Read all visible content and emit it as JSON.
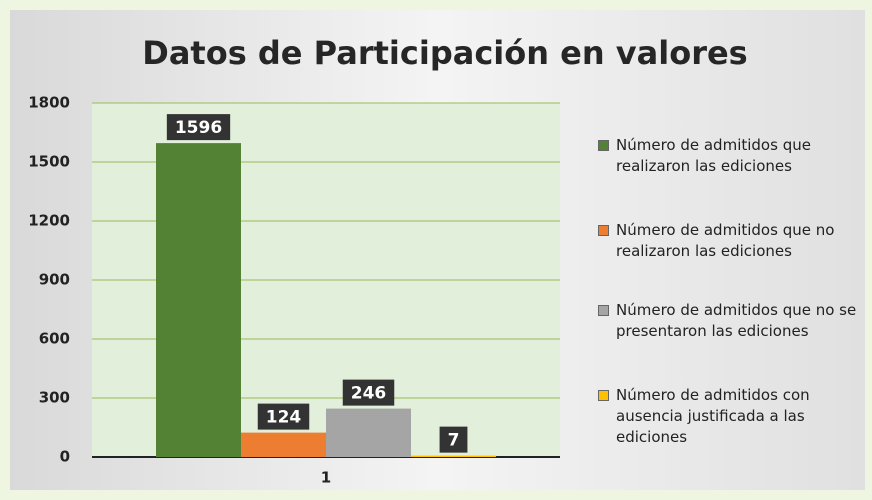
{
  "chart_data": {
    "type": "bar",
    "title": "Datos de Participación en valores",
    "categories": [
      "1"
    ],
    "series": [
      {
        "name": "Número de admitidos que realizaron las ediciones",
        "color": "#548235",
        "values": [
          1596
        ]
      },
      {
        "name": "Número de admitidos que no realizaron las ediciones",
        "color": "#ed7d31",
        "values": [
          124
        ]
      },
      {
        "name": "Número de admitidos que no se presentaron las ediciones",
        "color": "#a5a5a5",
        "values": [
          246
        ]
      },
      {
        "name": "Número de admitidos con ausencia justificada a las ediciones",
        "color": "#ffc000",
        "values": [
          7
        ]
      }
    ],
    "ylim": [
      0,
      1800
    ],
    "yticks": [
      0,
      300,
      600,
      900,
      1200,
      1500,
      1800
    ],
    "grid": true,
    "legend": "right"
  }
}
